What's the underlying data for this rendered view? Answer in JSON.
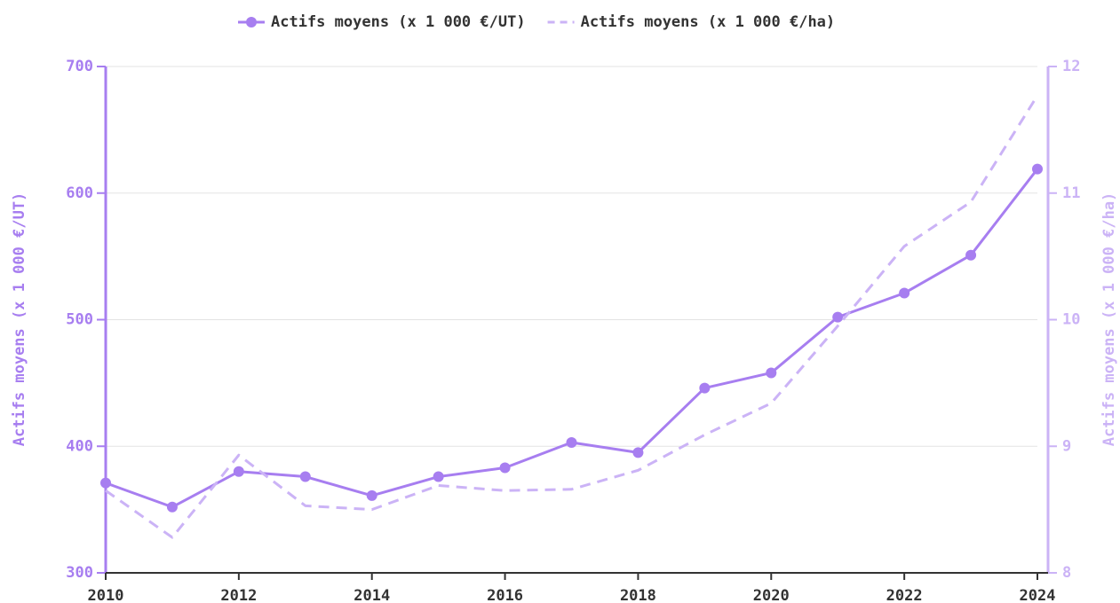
{
  "chart_data": {
    "type": "line",
    "x": [
      2010,
      2011,
      2012,
      2013,
      2014,
      2015,
      2016,
      2017,
      2018,
      2019,
      2020,
      2021,
      2022,
      2023,
      2024
    ],
    "series": [
      {
        "name": "Actifs moyens (x 1 000 €/UT)",
        "color": "#a77ef0",
        "dashed": false,
        "markers": true,
        "values": [
          371,
          352,
          380,
          376,
          361,
          376,
          383,
          403,
          395,
          446,
          458,
          502,
          521,
          551,
          619
        ]
      },
      {
        "name": "Actifs moyens (x 1 000 €/ha)",
        "color": "#cbb3f6",
        "dashed": true,
        "markers": false,
        "axis": "y2",
        "values": [
          8.65,
          8.28,
          8.93,
          8.53,
          8.5,
          8.69,
          8.65,
          8.66,
          8.81,
          9.09,
          9.34,
          9.95,
          10.58,
          10.93,
          11.77
        ]
      }
    ],
    "ylabel": "Actifs moyens (x 1 000 €/UT)",
    "y2label": "Actifs moyens (x 1 000 €/ha)",
    "xlim": [
      2010,
      2024
    ],
    "xticks": [
      2010,
      2012,
      2014,
      2016,
      2018,
      2020,
      2022,
      2024
    ],
    "ylim": [
      300,
      700
    ],
    "yticks": [
      300,
      400,
      500,
      600,
      700
    ],
    "y2lim": [
      8,
      12
    ],
    "y2ticks": [
      8,
      9,
      10,
      11,
      12
    ],
    "grid": true,
    "legend": "top"
  }
}
